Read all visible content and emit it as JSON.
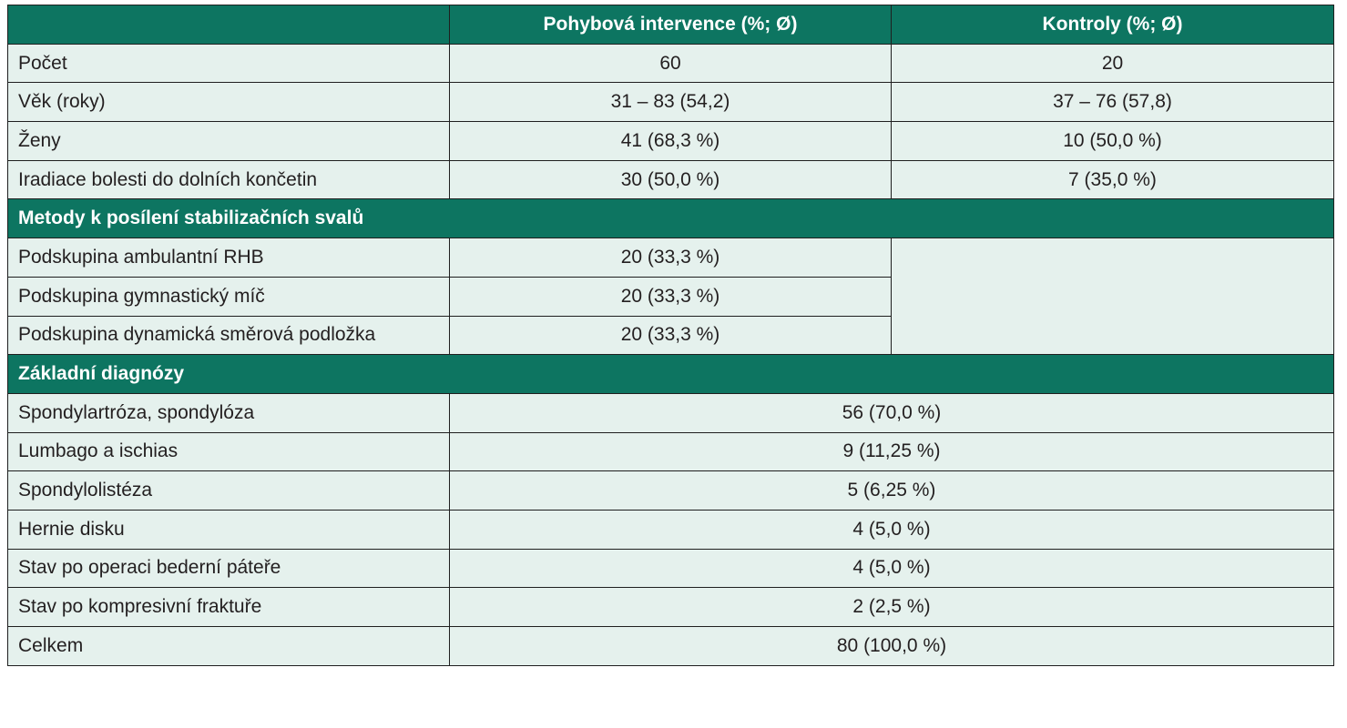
{
  "table": {
    "header": {
      "col0": "",
      "col1": "Pohybová intervence (%; Ø)",
      "col2": "Kontroly (%; Ø)"
    },
    "basic_rows": [
      {
        "label": "Počet",
        "intervention": "60",
        "control": "20"
      },
      {
        "label": "Věk (roky)",
        "intervention": "31 – 83 (54,2)",
        "control": "37 – 76 (57,8)"
      },
      {
        "label": "Ženy",
        "intervention": "41 (68,3 %)",
        "control": "10 (50,0 %)"
      },
      {
        "label": "Iradiace bolesti do dolních končetin",
        "intervention": "30 (50,0 %)",
        "control": "7 (35,0 %)"
      }
    ],
    "section_methods": "Metody k posílení stabilizačních svalů",
    "methods_rows": [
      {
        "label": "Podskupina ambulantní RHB",
        "value": "20 (33,3 %)"
      },
      {
        "label": "Podskupina gymnastický míč",
        "value": "20 (33,3 %)"
      },
      {
        "label": "Podskupina dynamická směrová podložka",
        "value": "20 (33,3 %)"
      }
    ],
    "section_diagnoses": "Základní diagnózy",
    "diagnoses_rows": [
      {
        "label": "Spondylartróza, spondylóza",
        "value": "56 (70,0 %)"
      },
      {
        "label": "Lumbago a ischias",
        "value": "9 (11,25 %)"
      },
      {
        "label": "Spondylolistéza",
        "value": "5 (6,25 %)"
      },
      {
        "label": "Hernie disku",
        "value": "4 (5,0 %)"
      },
      {
        "label": "Stav po operaci bederní páteře",
        "value": "4 (5,0 %)"
      },
      {
        "label": "Stav po kompresivní fraktuře",
        "value": "2 (2,5 %)"
      },
      {
        "label": "Celkem",
        "value": "80 (100,0 %)"
      }
    ]
  },
  "colors": {
    "header_bg": "#0d7561",
    "row_bg": "#e5f1ed",
    "border": "#1f1f1f"
  }
}
